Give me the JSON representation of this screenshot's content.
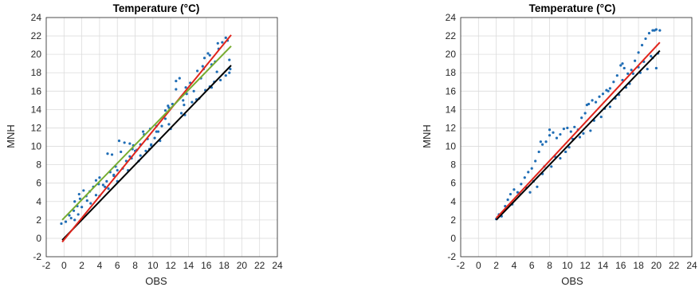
{
  "chart_data": [
    {
      "type": "scatter",
      "title": "Temperature (°C)",
      "xlabel": "OBS",
      "ylabel": "MNH",
      "xlim": [
        -2,
        24
      ],
      "ylim": [
        -2,
        24
      ],
      "xticks": [
        "-2",
        "0",
        "2",
        "4",
        "6",
        "8",
        "10",
        "12",
        "14",
        "16",
        "18",
        "20",
        "22",
        "24"
      ],
      "yticks": [
        "-2",
        "0",
        "2",
        "4",
        "6",
        "8",
        "10",
        "12",
        "14",
        "16",
        "18",
        "20",
        "22",
        "24"
      ],
      "grid": true,
      "colors": {
        "points": "#1f6db5",
        "identity": "#000000",
        "fit_red": "#e0241b",
        "fit_green": "#77ac30"
      },
      "points": [
        [
          -0.3,
          1.6
        ],
        [
          0.2,
          1.8
        ],
        [
          0.8,
          2.2
        ],
        [
          1.2,
          2.0
        ],
        [
          1.1,
          3.0
        ],
        [
          1.5,
          3.5
        ],
        [
          1.2,
          4.0
        ],
        [
          1.8,
          4.3
        ],
        [
          2.2,
          5.2
        ],
        [
          2.5,
          4.6
        ],
        [
          2.9,
          5.1
        ],
        [
          3.3,
          5.6
        ],
        [
          3.6,
          6.3
        ],
        [
          4.0,
          6.6
        ],
        [
          4.4,
          5.8
        ],
        [
          4.8,
          6.2
        ],
        [
          5.2,
          7.2
        ],
        [
          5.6,
          6.8
        ],
        [
          6.0,
          7.4
        ],
        [
          6.4,
          9.4
        ],
        [
          6.8,
          10.4
        ],
        [
          7.0,
          8.4
        ],
        [
          7.4,
          8.9
        ],
        [
          7.8,
          10.1
        ],
        [
          8.2,
          9.6
        ],
        [
          8.6,
          10.2
        ],
        [
          9.0,
          11.3
        ],
        [
          9.4,
          10.8
        ],
        [
          9.8,
          10.1
        ],
        [
          10.2,
          10.9
        ],
        [
          10.6,
          11.6
        ],
        [
          11.0,
          12.2
        ],
        [
          11.4,
          13.0
        ],
        [
          11.8,
          14.2
        ],
        [
          12.2,
          14.6
        ],
        [
          12.6,
          16.2
        ],
        [
          13.0,
          17.4
        ],
        [
          13.4,
          15.0
        ],
        [
          13.8,
          15.7
        ],
        [
          14.2,
          16.9
        ],
        [
          14.6,
          16.0
        ],
        [
          15.0,
          18.2
        ],
        [
          15.4,
          17.4
        ],
        [
          15.8,
          19.6
        ],
        [
          16.2,
          20.1
        ],
        [
          16.6,
          18.9
        ],
        [
          17.0,
          19.2
        ],
        [
          17.4,
          20.6
        ],
        [
          17.8,
          21.3
        ],
        [
          18.2,
          21.8
        ],
        [
          18.6,
          19.4
        ],
        [
          18.6,
          18.0
        ],
        [
          18.2,
          17.7
        ],
        [
          17.6,
          17.2
        ],
        [
          16.9,
          17.0
        ],
        [
          15.9,
          16.1
        ],
        [
          14.4,
          14.8
        ],
        [
          13.2,
          13.6
        ],
        [
          11.8,
          12.4
        ],
        [
          10.4,
          11.6
        ],
        [
          9.6,
          9.7
        ],
        [
          8.6,
          9.0
        ],
        [
          7.6,
          8.7
        ],
        [
          6.6,
          7.6
        ],
        [
          5.6,
          6.9
        ],
        [
          4.6,
          5.6
        ],
        [
          3.6,
          4.7
        ],
        [
          2.6,
          4.1
        ],
        [
          1.6,
          2.6
        ],
        [
          3.0,
          3.8
        ],
        [
          4.0,
          4.6
        ],
        [
          5.0,
          5.4
        ],
        [
          6.0,
          6.2
        ],
        [
          7.2,
          7.4
        ],
        [
          8.4,
          8.4
        ],
        [
          9.2,
          9.5
        ],
        [
          10.8,
          10.6
        ],
        [
          12.0,
          11.9
        ],
        [
          13.6,
          13.4
        ],
        [
          15.2,
          15.2
        ],
        [
          16.4,
          16.5
        ],
        [
          17.2,
          18.1
        ],
        [
          5.4,
          9.1
        ],
        [
          4.9,
          9.2
        ],
        [
          6.2,
          10.6
        ],
        [
          7.4,
          10.3
        ],
        [
          8.9,
          11.6
        ],
        [
          10.4,
          12.2
        ],
        [
          12.6,
          17.1
        ],
        [
          15.6,
          18.7
        ],
        [
          16.4,
          19.9
        ],
        [
          17.3,
          21.2
        ],
        [
          18.4,
          21.5
        ],
        [
          18.7,
          18.4
        ],
        [
          16.6,
          16.4
        ],
        [
          14.9,
          15.1
        ],
        [
          13.5,
          14.5
        ],
        [
          11.4,
          13.9
        ],
        [
          9.8,
          10.2
        ],
        [
          8.0,
          9.5
        ],
        [
          2.0,
          3.4
        ],
        [
          0.6,
          2.5
        ],
        [
          1.7,
          4.8
        ],
        [
          3.9,
          5.9
        ],
        [
          5.8,
          7.8
        ],
        [
          7.7,
          9.7
        ],
        [
          9.7,
          11.9
        ],
        [
          11.7,
          14.4
        ],
        [
          13.7,
          16.4
        ],
        [
          15.7,
          18.4
        ]
      ],
      "lines": [
        {
          "label": "identity",
          "color": "#000000",
          "x": [
            -0.2,
            18.8
          ],
          "y": [
            -0.2,
            18.8
          ]
        },
        {
          "label": "fit",
          "color": "#e0241b",
          "x": [
            -0.2,
            18.8
          ],
          "y": [
            -0.4,
            22.1
          ]
        },
        {
          "label": "fit2",
          "color": "#77ac30",
          "x": [
            -0.2,
            18.8
          ],
          "y": [
            2.0,
            20.9
          ]
        }
      ]
    },
    {
      "type": "scatter",
      "title": "Temperature (°C)",
      "xlabel": "OBS",
      "ylabel": "MNH",
      "xlim": [
        -2,
        24
      ],
      "ylim": [
        -2,
        24
      ],
      "xticks": [
        "-2",
        "0",
        "2",
        "4",
        "6",
        "8",
        "10",
        "12",
        "14",
        "16",
        "18",
        "20",
        "22",
        "24"
      ],
      "yticks": [
        "-2",
        "0",
        "2",
        "4",
        "6",
        "8",
        "10",
        "12",
        "14",
        "16",
        "18",
        "20",
        "22",
        "24"
      ],
      "grid": true,
      "colors": {
        "points": "#1f6db5",
        "identity": "#000000",
        "fit_red": "#e0241b"
      },
      "points": [
        [
          2.0,
          2.1
        ],
        [
          2.3,
          2.6
        ],
        [
          2.6,
          2.4
        ],
        [
          3.0,
          3.5
        ],
        [
          3.3,
          4.2
        ],
        [
          3.6,
          4.8
        ],
        [
          4.0,
          5.3
        ],
        [
          4.4,
          5.0
        ],
        [
          4.8,
          5.9
        ],
        [
          5.2,
          6.6
        ],
        [
          5.6,
          7.2
        ],
        [
          6.0,
          7.6
        ],
        [
          6.4,
          8.4
        ],
        [
          6.8,
          9.4
        ],
        [
          7.2,
          10.2
        ],
        [
          7.6,
          10.5
        ],
        [
          8.0,
          11.8
        ],
        [
          8.4,
          11.5
        ],
        [
          8.8,
          10.9
        ],
        [
          9.2,
          11.3
        ],
        [
          9.6,
          11.9
        ],
        [
          10.0,
          12.0
        ],
        [
          10.4,
          11.6
        ],
        [
          10.8,
          12.1
        ],
        [
          11.2,
          11.8
        ],
        [
          11.6,
          13.1
        ],
        [
          12.0,
          13.6
        ],
        [
          12.4,
          14.6
        ],
        [
          12.8,
          15.0
        ],
        [
          13.2,
          14.8
        ],
        [
          13.6,
          15.4
        ],
        [
          14.0,
          15.7
        ],
        [
          14.4,
          16.1
        ],
        [
          14.8,
          16.3
        ],
        [
          15.2,
          17.0
        ],
        [
          15.6,
          17.7
        ],
        [
          16.0,
          18.8
        ],
        [
          16.4,
          18.5
        ],
        [
          16.8,
          17.9
        ],
        [
          17.2,
          18.3
        ],
        [
          17.6,
          19.3
        ],
        [
          18.0,
          20.2
        ],
        [
          18.4,
          21.0
        ],
        [
          18.8,
          21.7
        ],
        [
          19.2,
          22.3
        ],
        [
          19.6,
          22.6
        ],
        [
          20.0,
          22.7
        ],
        [
          20.4,
          22.6
        ],
        [
          20.0,
          18.5
        ],
        [
          19.6,
          19.6
        ],
        [
          19.0,
          18.4
        ],
        [
          18.6,
          19.2
        ],
        [
          18.0,
          18.6
        ],
        [
          17.4,
          17.9
        ],
        [
          16.6,
          16.4
        ],
        [
          15.8,
          15.6
        ],
        [
          14.8,
          14.3
        ],
        [
          13.8,
          13.2
        ],
        [
          12.6,
          11.7
        ],
        [
          11.4,
          11.0
        ],
        [
          10.2,
          9.9
        ],
        [
          9.2,
          8.7
        ],
        [
          8.2,
          7.8
        ],
        [
          7.2,
          7.0
        ],
        [
          6.2,
          6.2
        ],
        [
          5.4,
          5.5
        ],
        [
          5.8,
          5.0
        ],
        [
          4.6,
          4.9
        ],
        [
          3.8,
          3.7
        ],
        [
          2.8,
          2.9
        ],
        [
          6.6,
          5.6
        ],
        [
          7.4,
          7.8
        ],
        [
          8.6,
          8.9
        ],
        [
          9.8,
          9.4
        ],
        [
          10.6,
          10.8
        ],
        [
          11.8,
          11.4
        ],
        [
          13.0,
          12.8
        ],
        [
          14.2,
          14.1
        ],
        [
          15.4,
          15.2
        ],
        [
          16.2,
          17.2
        ],
        [
          17.0,
          16.8
        ],
        [
          18.2,
          18.0
        ],
        [
          19.4,
          19.8
        ],
        [
          20.2,
          20.1
        ],
        [
          7.0,
          10.5
        ],
        [
          8.0,
          11.2
        ],
        [
          12.2,
          14.5
        ],
        [
          14.6,
          16.0
        ],
        [
          16.2,
          19.0
        ],
        [
          19.8,
          22.6
        ]
      ],
      "lines": [
        {
          "label": "identity",
          "color": "#000000",
          "x": [
            2.0,
            20.4
          ],
          "y": [
            2.0,
            20.4
          ]
        },
        {
          "label": "fit",
          "color": "#e0241b",
          "x": [
            2.0,
            20.4
          ],
          "y": [
            2.2,
            21.3
          ]
        }
      ]
    }
  ]
}
